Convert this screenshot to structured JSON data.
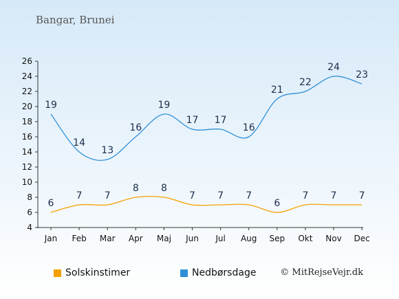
{
  "location": "Bangar, Brunei",
  "credit": "© MitRejseVejr.dk",
  "chart_data": {
    "type": "line",
    "categories": [
      "Jan",
      "Feb",
      "Mar",
      "Apr",
      "Maj",
      "Jun",
      "Jul",
      "Aug",
      "Sep",
      "Okt",
      "Nov",
      "Dec"
    ],
    "ylim": [
      4,
      26
    ],
    "yticks": [
      4,
      6,
      8,
      10,
      12,
      14,
      16,
      18,
      20,
      22,
      24,
      26
    ],
    "grid": false,
    "legend_position": "bottom",
    "series": [
      {
        "name": "Solskinstimer",
        "values": [
          6,
          7,
          7,
          8,
          8,
          7,
          7,
          7,
          6,
          7,
          7,
          7
        ],
        "color": "#f5a000"
      },
      {
        "name": "Nedbørsdage",
        "values": [
          19,
          14,
          13,
          16,
          19,
          17,
          17,
          16,
          21,
          22,
          24,
          23
        ],
        "color": "#2e8fd6"
      }
    ]
  },
  "legend": [
    {
      "label": "Solskinstimer",
      "color": "#f5a000"
    },
    {
      "label": "Nedbørsdage",
      "color": "#2e8fd6"
    }
  ]
}
